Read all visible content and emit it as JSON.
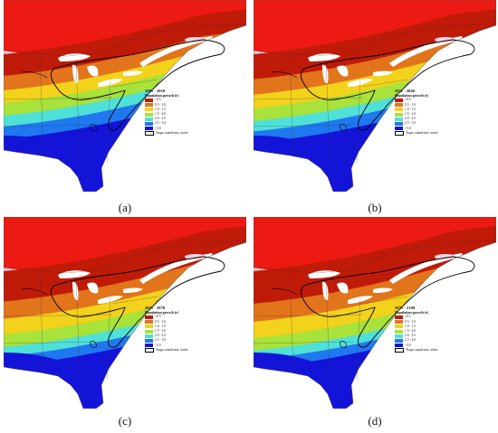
{
  "legend_title": "Population growth (r)",
  "legend_classes": [
    {
      "label": "<0.5",
      "color": "#c01a08"
    },
    {
      "label": "0.5 - 1.0",
      "color": "#e2741b"
    },
    {
      "label": "1.0 - 1.5",
      "color": "#f2d21b"
    },
    {
      "label": "1.5 - 2.0",
      "color": "#a8e23a"
    },
    {
      "label": "2.0 - 2.5",
      "color": "#4fe0d8"
    },
    {
      "label": "2.5 - 3.0",
      "color": "#1f78f0"
    },
    {
      "label": ">3.0",
      "color": "#1414d8"
    }
  ],
  "outline_label": "Tsuga canadensis, native",
  "land_color": "#f2c8dc",
  "north_color": "#ec1a12",
  "panels": [
    {
      "caption": "(a)",
      "period": "1981 - 2010",
      "shift": 0
    },
    {
      "caption": "(b)",
      "period": "2011 - 2040",
      "shift": 6
    },
    {
      "caption": "(c)",
      "period": "2041 - 2070",
      "shift": 16
    },
    {
      "caption": "(d)",
      "period": "2071 - 2100",
      "shift": 20
    }
  ]
}
